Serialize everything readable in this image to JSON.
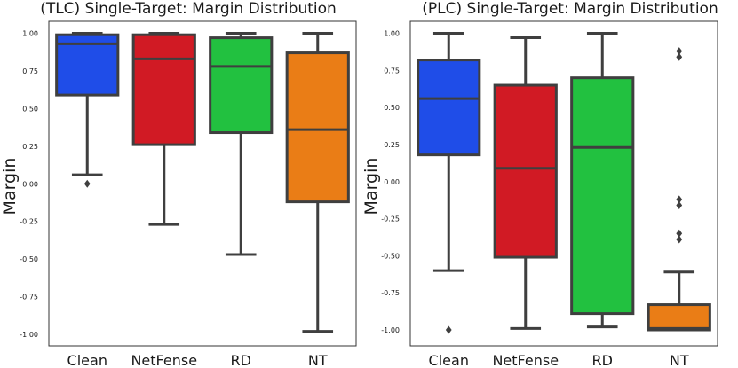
{
  "chart_data": [
    {
      "type": "box",
      "title": "(TLC) Single-Target: Margin Distribution",
      "ylabel": "Margin",
      "xlabel": "",
      "ylim": [
        -1.05,
        1.05
      ],
      "yticks": [
        "1.00",
        "0.75",
        "0.50",
        "0.25",
        "0.00",
        "-0.25",
        "-0.50",
        "-0.75",
        "-1.00"
      ],
      "categories": [
        "Clean",
        "NetFense",
        "RD",
        "NT"
      ],
      "boxes": [
        {
          "name": "Clean",
          "color": "#1f4de8",
          "whisker_low": 0.06,
          "q1": 0.59,
          "median": 0.93,
          "q3": 0.99,
          "whisker_high": 1.0,
          "outliers": [
            0.0
          ]
        },
        {
          "name": "NetFense",
          "color": "#d11a24",
          "whisker_low": -0.27,
          "q1": 0.26,
          "median": 0.83,
          "q3": 0.99,
          "whisker_high": 1.0,
          "outliers": []
        },
        {
          "name": "RD",
          "color": "#22c140",
          "whisker_low": -0.47,
          "q1": 0.34,
          "median": 0.78,
          "q3": 0.97,
          "whisker_high": 1.0,
          "outliers": []
        },
        {
          "name": "NT",
          "color": "#ea7d16",
          "whisker_low": -0.98,
          "q1": -0.12,
          "median": 0.36,
          "q3": 0.87,
          "whisker_high": 1.0,
          "outliers": []
        }
      ]
    },
    {
      "type": "box",
      "title": "(PLC) Single-Target: Margin Distribution",
      "ylabel": "Margin",
      "xlabel": "",
      "ylim": [
        -1.05,
        1.05
      ],
      "yticks": [
        "1.00",
        "0.75",
        "0.50",
        "0.25",
        "0.00",
        "-0.25",
        "-0.50",
        "-0.75",
        "-1.00"
      ],
      "categories": [
        "Clean",
        "NetFense",
        "RD",
        "NT"
      ],
      "boxes": [
        {
          "name": "Clean",
          "color": "#1f4de8",
          "whisker_low": -0.6,
          "q1": 0.18,
          "median": 0.56,
          "q3": 0.82,
          "whisker_high": 1.0,
          "outliers": [
            -1.0
          ]
        },
        {
          "name": "NetFense",
          "color": "#d11a24",
          "whisker_low": -0.99,
          "q1": -0.51,
          "median": 0.09,
          "q3": 0.65,
          "whisker_high": 0.97,
          "outliers": []
        },
        {
          "name": "RD",
          "color": "#22c140",
          "whisker_low": -0.98,
          "q1": -0.89,
          "median": 0.23,
          "q3": 0.7,
          "whisker_high": 1.0,
          "outliers": []
        },
        {
          "name": "NT",
          "color": "#ea7d16",
          "whisker_low": -1.0,
          "q1": -1.0,
          "median": -0.99,
          "q3": -0.83,
          "whisker_high": -0.61,
          "outliers": [
            0.88,
            0.84,
            -0.12,
            -0.16,
            -0.35,
            -0.39
          ]
        }
      ]
    }
  ]
}
